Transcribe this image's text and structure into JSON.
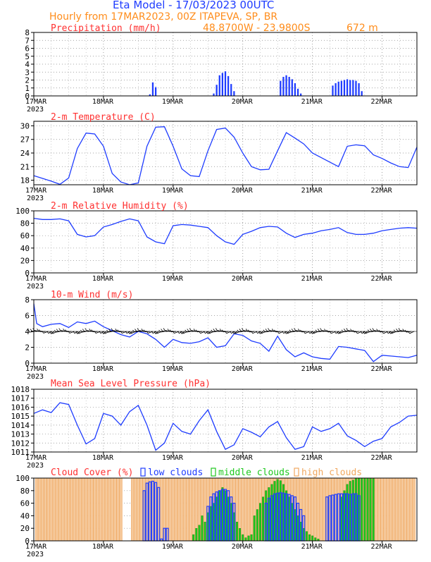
{
  "header": {
    "title": "Eta Model - 17/03/2023 00UTC",
    "subtitle": "Hourly from 17MAR2023, 00Z  ITAPEVA, SP, BR",
    "coords": "48.8700W - 23.9800S",
    "elevation": "672  m"
  },
  "colors": {
    "title": "#1e3cff",
    "subtitle": "#ff8c1a",
    "panel_title": "#ff3030",
    "line": "#1e3cff",
    "low": "#1e3cff",
    "middle": "#1ec81e",
    "high": "#f0a860",
    "high_fill": "#f5c89a",
    "wind": "#000000"
  },
  "chart_data": [
    {
      "id": "precip",
      "type": "bar",
      "title": "Precipitation (mm/h)",
      "ylim": [
        0,
        8
      ],
      "yticks": [
        0,
        1,
        2,
        3,
        4,
        5,
        6,
        7,
        8
      ],
      "x_start_hour": 0,
      "x_end_hour": 132,
      "xtick_labels": [
        "17MAR",
        "18MAR",
        "19MAR",
        "20MAR",
        "21MAR",
        "22MAR"
      ],
      "year_label": "2023",
      "x": [
        40,
        41,
        42,
        62,
        63,
        64,
        65,
        66,
        67,
        68,
        69,
        85,
        86,
        87,
        88,
        89,
        90,
        91,
        92,
        103,
        104,
        105,
        106,
        107,
        108,
        109,
        110,
        111,
        112,
        113
      ],
      "values": [
        0.2,
        1.7,
        1.1,
        0.3,
        1.4,
        2.6,
        2.9,
        3.1,
        2.5,
        1.5,
        0.6,
        1.9,
        2.4,
        2.6,
        2.4,
        2.1,
        1.6,
        0.9,
        0.3,
        1.3,
        1.6,
        1.8,
        1.9,
        2.0,
        2.1,
        2.0,
        2.0,
        1.9,
        1.6,
        0.6
      ]
    },
    {
      "id": "temp",
      "type": "line",
      "title": "2-m Temperature (C)",
      "ylim": [
        17,
        31
      ],
      "yticks": [
        18,
        21,
        24,
        27,
        30
      ],
      "x_start_hour": 0,
      "x_end_hour": 132,
      "xtick_labels": [
        "17MAR",
        "18MAR",
        "19MAR",
        "20MAR",
        "21MAR",
        "22MAR"
      ],
      "year_label": "2023",
      "x": [
        0,
        3,
        6,
        9,
        12,
        15,
        18,
        21,
        24,
        27,
        30,
        33,
        36,
        39,
        42,
        45,
        48,
        51,
        54,
        57,
        60,
        63,
        66,
        69,
        72,
        75,
        78,
        81,
        84,
        87,
        90,
        93,
        96,
        99,
        102,
        105,
        108,
        111,
        114,
        117,
        120,
        123,
        126,
        129,
        132
      ],
      "values": [
        19,
        18.4,
        17.8,
        17.1,
        18.5,
        25,
        28.4,
        28.2,
        25.5,
        19.5,
        17.6,
        17.0,
        17.4,
        25.5,
        29.7,
        29.8,
        25.5,
        20.5,
        19.0,
        18.8,
        24.5,
        29.2,
        29.5,
        27.5,
        24.0,
        21.0,
        20.3,
        20.4,
        24.5,
        28.5,
        27.3,
        26.0,
        24.0,
        23.0,
        22.0,
        21.0,
        25.5,
        25.8,
        25.6,
        23.6,
        22.8,
        21.8,
        21.0,
        20.8,
        25.3
      ]
    },
    {
      "id": "rh",
      "type": "line",
      "title": "2-m Relative Humidity (%)",
      "ylim": [
        0,
        100
      ],
      "yticks": [
        0,
        20,
        40,
        60,
        80,
        100
      ],
      "x_start_hour": 0,
      "x_end_hour": 132,
      "xtick_labels": [
        "17MAR",
        "18MAR",
        "19MAR",
        "20MAR",
        "21MAR",
        "22MAR"
      ],
      "year_label": "2023",
      "x": [
        0,
        3,
        6,
        9,
        12,
        15,
        18,
        21,
        24,
        27,
        30,
        33,
        36,
        39,
        42,
        45,
        48,
        51,
        54,
        57,
        60,
        63,
        66,
        69,
        72,
        75,
        78,
        81,
        84,
        87,
        90,
        93,
        96,
        99,
        102,
        105,
        108,
        111,
        114,
        117,
        120,
        123,
        126,
        129,
        132
      ],
      "values": [
        88,
        86,
        86,
        87,
        84,
        62,
        58,
        60,
        74,
        78,
        83,
        87,
        84,
        58,
        50,
        47,
        76,
        78,
        77,
        75,
        73,
        60,
        50,
        46,
        62,
        67,
        73,
        75,
        74,
        64,
        57,
        62,
        64,
        68,
        70,
        73,
        65,
        62,
        62,
        64,
        68,
        70,
        72,
        73,
        72
      ]
    },
    {
      "id": "wind",
      "type": "line",
      "title": "10-m Wind (m/s)",
      "ylim": [
        0,
        8
      ],
      "yticks": [
        0,
        2,
        4,
        6,
        8
      ],
      "x_start_hour": 0,
      "x_end_hour": 132,
      "xtick_labels": [
        "17MAR",
        "18MAR",
        "19MAR",
        "20MAR",
        "21MAR",
        "22MAR"
      ],
      "year_label": "2023",
      "x": [
        0,
        1,
        3,
        6,
        9,
        12,
        15,
        18,
        21,
        24,
        27,
        30,
        33,
        36,
        39,
        42,
        45,
        48,
        51,
        54,
        57,
        60,
        63,
        66,
        69,
        72,
        75,
        78,
        81,
        84,
        87,
        90,
        93,
        96,
        99,
        102,
        105,
        108,
        111,
        114,
        117,
        120,
        123,
        126,
        129,
        132
      ],
      "values": [
        7.5,
        5.0,
        4.6,
        4.9,
        5.0,
        4.5,
        5.2,
        5.0,
        5.3,
        4.6,
        4.1,
        3.6,
        3.3,
        4.0,
        3.7,
        3.0,
        2.0,
        3.0,
        2.6,
        2.5,
        2.7,
        3.2,
        2.0,
        2.2,
        3.7,
        3.5,
        2.8,
        2.5,
        1.5,
        3.4,
        1.7,
        0.8,
        1.3,
        0.8,
        0.6,
        0.5,
        2.1,
        2.0,
        1.8,
        1.6,
        0.2,
        1.0,
        0.9,
        0.8,
        0.7,
        1.0
      ]
    },
    {
      "id": "mslp",
      "type": "line",
      "title": "Mean Sea Level Pressure (hPa)",
      "ylim": [
        1011,
        1018
      ],
      "yticks": [
        1011,
        1012,
        1013,
        1014,
        1015,
        1016,
        1017,
        1018
      ],
      "x_start_hour": 0,
      "x_end_hour": 132,
      "xtick_labels": [
        "17MAR",
        "18MAR",
        "19MAR",
        "20MAR",
        "21MAR",
        "22MAR"
      ],
      "year_label": "2023",
      "x": [
        0,
        3,
        6,
        9,
        12,
        15,
        18,
        21,
        24,
        27,
        30,
        33,
        36,
        39,
        42,
        45,
        48,
        51,
        54,
        57,
        60,
        63,
        66,
        69,
        72,
        75,
        78,
        81,
        84,
        87,
        90,
        93,
        96,
        99,
        102,
        105,
        108,
        111,
        114,
        117,
        120,
        123,
        126,
        129,
        132
      ],
      "values": [
        1015.3,
        1015.7,
        1015.4,
        1016.5,
        1016.3,
        1014.0,
        1011.9,
        1012.5,
        1015.3,
        1015.0,
        1014.0,
        1015.5,
        1016.2,
        1014.0,
        1011.2,
        1012.0,
        1014.2,
        1013.3,
        1013.0,
        1014.5,
        1015.7,
        1013.3,
        1011.3,
        1011.8,
        1013.6,
        1013.2,
        1012.7,
        1013.8,
        1014.4,
        1012.6,
        1011.3,
        1011.6,
        1013.8,
        1013.3,
        1013.6,
        1014.2,
        1012.8,
        1012.3,
        1011.6,
        1012.2,
        1012.5,
        1013.8,
        1014.3,
        1015.0,
        1015.1
      ]
    },
    {
      "id": "cloud",
      "type": "bar",
      "title": "Cloud Cover (%)",
      "legend": [
        "low clouds",
        "middle clouds",
        "high clouds"
      ],
      "ylim": [
        0,
        100
      ],
      "yticks": [
        0,
        20,
        40,
        60,
        80,
        100
      ],
      "x_start_hour": 0,
      "x_end_hour": 132,
      "xtick_labels": [
        "17MAR",
        "18MAR",
        "19MAR",
        "20MAR",
        "21MAR",
        "22MAR"
      ],
      "year_label": "2023",
      "series": [
        {
          "name": "low clouds",
          "x": [
            38,
            39,
            40,
            41,
            42,
            43,
            44,
            45,
            46,
            60,
            61,
            62,
            63,
            64,
            65,
            66,
            67,
            68,
            69,
            80,
            81,
            82,
            83,
            84,
            85,
            86,
            87,
            88,
            89,
            90,
            91,
            92,
            93,
            101,
            102,
            103,
            104,
            105,
            106,
            107,
            108,
            109,
            110,
            111,
            112
          ],
          "values": [
            80,
            92,
            94,
            95,
            93,
            85,
            3,
            20,
            20,
            55,
            70,
            75,
            78,
            80,
            82,
            82,
            80,
            70,
            60,
            60,
            68,
            72,
            75,
            76,
            77,
            76,
            75,
            74,
            72,
            70,
            60,
            50,
            40,
            70,
            72,
            73,
            74,
            75,
            75,
            75,
            75,
            74,
            75,
            75,
            72
          ]
        },
        {
          "name": "middle clouds",
          "x": [
            55,
            56,
            57,
            58,
            59,
            60,
            61,
            62,
            63,
            64,
            65,
            66,
            67,
            68,
            69,
            70,
            71,
            72,
            73,
            74,
            75,
            76,
            77,
            78,
            79,
            80,
            81,
            82,
            83,
            84,
            85,
            86,
            87,
            88,
            89,
            90,
            91,
            92,
            93,
            94,
            95,
            96,
            97,
            98,
            106,
            107,
            108,
            109,
            110,
            111,
            112,
            113,
            114,
            115,
            116,
            117
          ],
          "values": [
            10,
            20,
            25,
            40,
            30,
            45,
            55,
            60,
            70,
            80,
            85,
            80,
            70,
            60,
            45,
            30,
            20,
            10,
            5,
            8,
            10,
            40,
            50,
            60,
            70,
            80,
            85,
            90,
            95,
            98,
            96,
            90,
            80,
            70,
            60,
            50,
            40,
            30,
            20,
            15,
            10,
            8,
            5,
            3,
            70,
            80,
            90,
            95,
            97,
            99,
            100,
            100,
            100,
            100,
            100,
            99
          ]
        },
        {
          "name": "high clouds",
          "x": [
            1,
            2,
            3,
            4,
            5,
            6,
            7,
            8,
            9,
            10,
            11,
            12,
            13,
            14,
            15,
            16,
            17,
            18,
            19,
            20,
            21,
            22,
            23,
            24,
            25,
            26,
            27,
            28,
            29,
            30,
            31,
            32,
            33,
            34,
            35,
            36,
            37,
            38,
            39,
            40,
            41,
            42,
            43,
            44,
            45,
            46,
            47,
            48,
            49,
            50,
            51,
            52,
            53,
            54,
            55,
            56,
            57,
            58,
            59,
            60,
            61,
            62,
            63,
            64,
            65,
            66,
            67,
            68,
            69,
            70,
            71,
            72,
            73,
            74,
            75,
            76,
            77,
            78,
            79,
            80,
            81,
            82,
            83,
            84,
            85,
            86,
            87,
            88,
            89,
            90,
            91,
            92,
            93,
            94,
            95,
            96,
            97,
            98,
            99,
            100,
            101,
            102,
            103,
            104,
            105,
            106,
            107,
            108,
            109,
            110,
            111,
            112,
            113,
            114,
            115,
            116,
            117,
            118,
            119,
            120,
            121,
            122,
            123,
            124,
            125,
            126,
            127,
            128,
            129,
            130,
            131
          ],
          "values": [
            100,
            100,
            100,
            100,
            100,
            100,
            100,
            100,
            100,
            100,
            100,
            100,
            100,
            100,
            100,
            100,
            100,
            100,
            100,
            100,
            100,
            100,
            100,
            100,
            100,
            100,
            100,
            100,
            100,
            100,
            0,
            0,
            0,
            100,
            100,
            100,
            100,
            100,
            100,
            100,
            100,
            100,
            100,
            100,
            100,
            100,
            100,
            100,
            100,
            100,
            100,
            100,
            100,
            100,
            100,
            100,
            100,
            100,
            100,
            100,
            100,
            100,
            100,
            100,
            100,
            100,
            100,
            100,
            100,
            100,
            100,
            100,
            100,
            100,
            100,
            100,
            100,
            100,
            100,
            100,
            100,
            100,
            100,
            100,
            100,
            100,
            100,
            100,
            100,
            100,
            100,
            100,
            100,
            100,
            100,
            100,
            100,
            100,
            100,
            100,
            100,
            100,
            100,
            100,
            100,
            100,
            100,
            100,
            100,
            100,
            100,
            100,
            100,
            100,
            100,
            100,
            100,
            100,
            100,
            100,
            100,
            100,
            100,
            100,
            100,
            100,
            100,
            100,
            100,
            100,
            100
          ]
        }
      ]
    }
  ],
  "wind_barbs": {
    "x_start": 0,
    "x_step": 1,
    "count": 132
  }
}
